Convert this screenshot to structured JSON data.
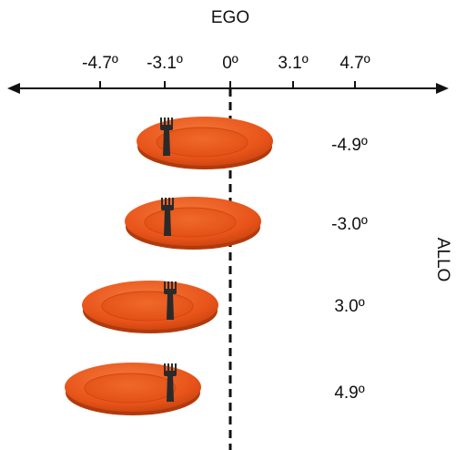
{
  "ego_axis": {
    "label": "EGO",
    "ticks": [
      "-4.7º",
      "-3.1º",
      "0º",
      "3.1º",
      "4.7º"
    ]
  },
  "allo_label": "ALLO",
  "rows": [
    {
      "label": "-4.9º"
    },
    {
      "label": "-3.0º"
    },
    {
      "label": "3.0º"
    },
    {
      "label": "4.9º"
    }
  ]
}
